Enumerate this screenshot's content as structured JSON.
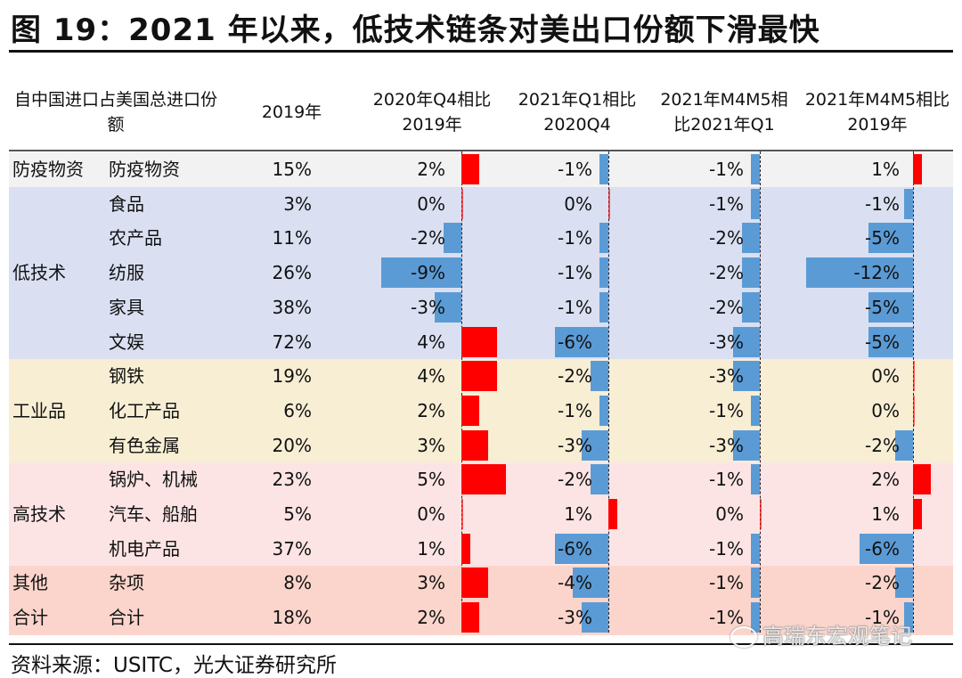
{
  "title": "图 19：2021 年以来，低技术链条对美出口份额下滑最快",
  "source": "资料来源：USITC，光大证券研究所",
  "watermark": "高瑞东宏观笔记",
  "colors": {
    "positive": "#ff0000",
    "negative": "#5b9bd5"
  },
  "headers": {
    "category": "自中国进口占美国总进口份额",
    "col2019": "2019年",
    "c1": "2020年Q4相比2019年",
    "c2": "2021年Q1相比2020Q4",
    "c3": "2021年M4M5相比2021年Q1",
    "c4": "2021年M4M5相比2019年"
  },
  "groups": [
    {
      "name": "防疫物资",
      "color": "#f2f2f2",
      "rows": [
        0
      ]
    },
    {
      "name": "低技术",
      "color": "#dae0f2",
      "rows": [
        1,
        2,
        3,
        4,
        5
      ]
    },
    {
      "name": "工业品",
      "color": "#f8eed4",
      "rows": [
        6,
        7,
        8
      ]
    },
    {
      "name": "高技术",
      "color": "#fde4e4",
      "rows": [
        9,
        10,
        11
      ]
    },
    {
      "name": "其他",
      "color": "#fbd5cc",
      "rows": [
        12
      ]
    },
    {
      "name": "合计",
      "color": "#fbd5cc",
      "rows": [
        13
      ]
    }
  ],
  "rows": [
    {
      "item": "防疫物资",
      "share2019": "15%",
      "c1": 2,
      "c2": -1,
      "c3": -1,
      "c4": 1
    },
    {
      "item": "食品",
      "share2019": "3%",
      "c1": 0,
      "c2": 0,
      "c3": -1,
      "c4": -1
    },
    {
      "item": "农产品",
      "share2019": "11%",
      "c1": -2,
      "c2": -1,
      "c3": -2,
      "c4": -5
    },
    {
      "item": "纺服",
      "share2019": "26%",
      "c1": -9,
      "c2": -1,
      "c3": -2,
      "c4": -12
    },
    {
      "item": "家具",
      "share2019": "38%",
      "c1": -3,
      "c2": -1,
      "c3": -2,
      "c4": -5
    },
    {
      "item": "文娱",
      "share2019": "72%",
      "c1": 4,
      "c2": -6,
      "c3": -3,
      "c4": -5
    },
    {
      "item": "钢铁",
      "share2019": "19%",
      "c1": 4,
      "c2": -2,
      "c3": -3,
      "c4": 0
    },
    {
      "item": "化工产品",
      "share2019": "6%",
      "c1": 2,
      "c2": -1,
      "c3": -1,
      "c4": 0
    },
    {
      "item": "有色金属",
      "share2019": "20%",
      "c1": 3,
      "c2": -3,
      "c3": -3,
      "c4": -2
    },
    {
      "item": "锅炉、机械",
      "share2019": "23%",
      "c1": 5,
      "c2": -2,
      "c3": -1,
      "c4": 2
    },
    {
      "item": "汽车、船舶",
      "share2019": "5%",
      "c1": 0,
      "c2": 1,
      "c3": 0,
      "c4": 1
    },
    {
      "item": "机电产品",
      "share2019": "37%",
      "c1": 1,
      "c2": -6,
      "c3": -1,
      "c4": -6
    },
    {
      "item": "杂项",
      "share2019": "8%",
      "c1": 3,
      "c2": -4,
      "c3": -1,
      "c4": -2
    },
    {
      "item": "合计",
      "share2019": "18%",
      "c1": 2,
      "c2": -3,
      "c3": -1,
      "c4": -1
    }
  ]
}
